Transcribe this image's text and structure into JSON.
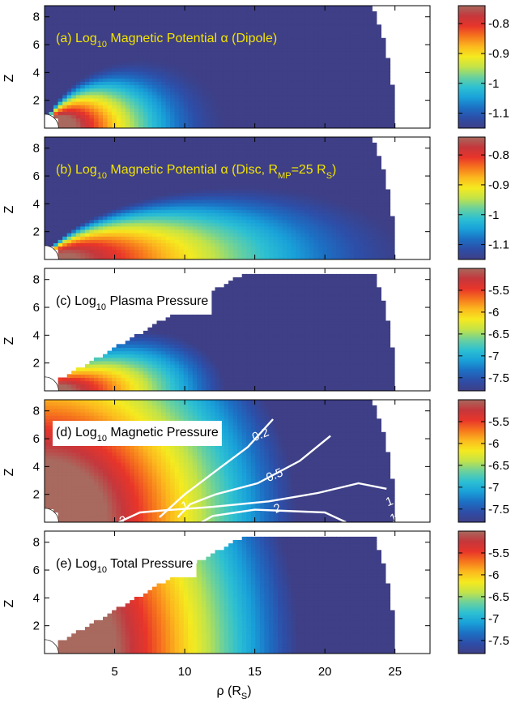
{
  "figure": {
    "xlabel": "ρ (R",
    "xlabel_sub": "S",
    "xlabel_end": ")"
  },
  "chart_data": [
    {
      "type": "heatmap",
      "panel": "a",
      "title": {
        "t1": "(a) Log",
        "s1": "10",
        "t2": " Magnetic Potential α (Dipole)"
      },
      "title_color": "#f2e400",
      "title_bg": "none",
      "ylabel": "Z",
      "xlim": [
        0,
        27.5
      ],
      "ylim": [
        0,
        8.8
      ],
      "y_ticks": [
        2,
        4,
        6,
        8
      ],
      "colorbar_ticks": [
        "-0.8",
        "-0.9",
        "-1",
        "-1.1"
      ],
      "colorbar_range": [
        -1.15,
        -0.74
      ],
      "field": "dipole",
      "domain": {
        "outer_radius": 25,
        "y_max": 8.8
      },
      "contours": []
    },
    {
      "type": "heatmap",
      "panel": "b",
      "title": {
        "t1": "(b) Log",
        "s1": "10",
        "t2": " Magnetic Potential α (Disc, R",
        "s2": "MP",
        "t3": "=25 R",
        "s3": "S",
        "t4": ")"
      },
      "title_color": "#f2e400",
      "title_bg": "none",
      "ylabel": "Z",
      "xlim": [
        0,
        27.5
      ],
      "ylim": [
        0,
        8.8
      ],
      "y_ticks": [
        2,
        4,
        6,
        8
      ],
      "colorbar_ticks": [
        "-0.8",
        "-0.9",
        "-1",
        "-1.1"
      ],
      "colorbar_range": [
        -1.15,
        -0.74
      ],
      "field": "disc",
      "domain": {
        "outer_radius": 25,
        "y_max": 8.8
      },
      "contours": []
    },
    {
      "type": "heatmap",
      "panel": "c",
      "title": {
        "t1": "(c) Log",
        "s1": "10",
        "t2": " Plasma Pressure"
      },
      "title_color": "#000000",
      "title_bg": "#ffffff",
      "ylabel": "Z",
      "xlim": [
        0,
        27.5
      ],
      "ylim": [
        0,
        8.8
      ],
      "y_ticks": [
        2,
        4,
        6,
        8
      ],
      "colorbar_ticks": [
        "-5.5",
        "-6",
        "-6.5",
        "-7",
        "-7.5"
      ],
      "colorbar_range": [
        -7.8,
        -5.0
      ],
      "field": "plasma",
      "domain": {
        "outer_radius": 25,
        "y_max": 8.5
      },
      "contours": []
    },
    {
      "type": "heatmap",
      "panel": "d",
      "title": {
        "t1": "(d) Log",
        "s1": "10",
        "t2": " Magnetic Pressure"
      },
      "title_color": "#000000",
      "title_bg": "#ffffff",
      "ylabel": "Z",
      "xlim": [
        0,
        27.5
      ],
      "ylim": [
        0,
        8.8
      ],
      "y_ticks": [
        2,
        4,
        6,
        8
      ],
      "colorbar_ticks": [
        "-5.5",
        "-6",
        "-6.5",
        "-7",
        "-7.5"
      ],
      "colorbar_range": [
        -7.8,
        -5.0
      ],
      "field": "magnetic",
      "domain": {
        "outer_radius": 25,
        "y_max": 8.8
      },
      "contours": [
        {
          "label": "0.2",
          "label_at": [
            15.4,
            6.3
          ],
          "points": [
            [
              8.2,
              0.35
            ],
            [
              10.0,
              2.0
            ],
            [
              12.5,
              3.9
            ],
            [
              14.5,
              5.4
            ],
            [
              16.3,
              7.4
            ]
          ]
        },
        {
          "label": "0.5",
          "label_at": [
            16.4,
            3.4
          ],
          "points": [
            [
              9.5,
              0.35
            ],
            [
              10.4,
              1.3
            ],
            [
              12.2,
              2.0
            ],
            [
              15.2,
              2.8
            ],
            [
              18.2,
              4.4
            ],
            [
              20.4,
              6.2
            ]
          ]
        },
        {
          "label": "1",
          "label_at": [
            10.0,
            1.2
          ],
          "points": [
            [
              5.3,
              0.0
            ],
            [
              6.8,
              0.7
            ],
            [
              8.5,
              0.85
            ],
            [
              12.0,
              1.1
            ],
            [
              16.0,
              1.5
            ],
            [
              19.5,
              2.1
            ],
            [
              22.4,
              2.8
            ],
            [
              24.4,
              2.4
            ]
          ]
        },
        {
          "label": "2",
          "label_at": [
            16.6,
            1.0
          ],
          "points": [
            [
              11.2,
              0.0
            ],
            [
              12.0,
              0.45
            ],
            [
              15.0,
              0.9
            ],
            [
              20.0,
              0.7
            ],
            [
              21.5,
              0.0
            ]
          ]
        },
        {
          "label": "1",
          "label_at": [
            24.6,
            1.5
          ],
          "points": []
        },
        {
          "label": "2",
          "label_at": [
            5.6,
            0.12
          ],
          "points": []
        },
        {
          "label": "1",
          "label_at": [
            24.9,
            0.3
          ],
          "points": []
        }
      ]
    },
    {
      "type": "heatmap",
      "panel": "e",
      "title": {
        "t1": "(e) Log",
        "s1": "10",
        "t2": " Total Pressure"
      },
      "title_color": "#000000",
      "title_bg": "#ffffff",
      "ylabel": "Z",
      "xlim": [
        0,
        27.5
      ],
      "ylim": [
        0,
        8.8
      ],
      "y_ticks": [
        2,
        4,
        6,
        8
      ],
      "colorbar_ticks": [
        "-5.5",
        "-6",
        "-6.5",
        "-7",
        "-7.5"
      ],
      "colorbar_range": [
        -7.8,
        -5.0
      ],
      "field": "total",
      "domain": {
        "outer_radius": 25,
        "y_max": 8.5
      },
      "contours": []
    }
  ],
  "x_ticks": [
    5,
    10,
    15,
    20,
    25
  ],
  "colormap": [
    "#3e3f86",
    "#2d4ea8",
    "#1c70c4",
    "#19a1d9",
    "#2dc0d2",
    "#6bd19c",
    "#c2e349",
    "#f5ea1f",
    "#fcb91e",
    "#f6761d",
    "#e8352a",
    "#c5373c",
    "#a8695e"
  ]
}
